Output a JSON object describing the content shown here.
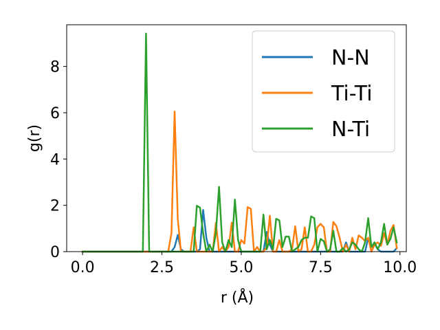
{
  "chart_data": {
    "type": "line",
    "xlabel": "r (Å)",
    "ylabel": "g(r)",
    "xlim": [
      -0.5,
      10.2
    ],
    "ylim": [
      0,
      9.8
    ],
    "xticks": [
      "0.0",
      "2.5",
      "5.0",
      "7.5",
      "10.0"
    ],
    "xtick_values": [
      0,
      2.5,
      5,
      7.5,
      10
    ],
    "yticks": [
      "0",
      "2",
      "4",
      "6",
      "8"
    ],
    "ytick_values": [
      0,
      2,
      4,
      6,
      8
    ],
    "grid": false,
    "legend": "top-right",
    "series": [
      {
        "name": "N-N",
        "color": "#1f77b4",
        "x": [
          0,
          2.8,
          2.9,
          3.0,
          3.1,
          3.2,
          3.6,
          3.7,
          3.8,
          3.9,
          4.0,
          4.5,
          5.7,
          5.8,
          5.9,
          6.0,
          7.9,
          8.0,
          8.2,
          8.3,
          8.4,
          8.9,
          9.0,
          9.1,
          9.2,
          9.3,
          9.4,
          9.8,
          9.9
        ],
        "y": [
          0,
          0,
          0.2,
          0.72,
          0.1,
          0,
          0,
          0.1,
          1.8,
          0.6,
          0,
          0,
          0,
          0.85,
          0.3,
          0,
          0,
          0,
          0,
          0.4,
          0,
          0,
          0.6,
          0.2,
          0.35,
          0.1,
          0,
          0,
          0.15
        ]
      },
      {
        "name": "Ti-Ti",
        "color": "#ff7f0e",
        "x": [
          0,
          2.7,
          2.8,
          2.9,
          3.0,
          3.1,
          3.2,
          3.3,
          3.4,
          3.5,
          3.6,
          4.1,
          4.2,
          4.3,
          4.4,
          4.5,
          4.6,
          4.7,
          4.8,
          4.9,
          5.0,
          5.1,
          5.2,
          5.3,
          5.4,
          5.5,
          5.6,
          5.7,
          5.8,
          5.9,
          6.0,
          6.1,
          6.2,
          6.3,
          6.4,
          6.5,
          6.6,
          6.7,
          6.8,
          6.9,
          7.0,
          7.1,
          7.2,
          7.3,
          7.4,
          7.5,
          7.6,
          7.7,
          7.8,
          7.9,
          8.0,
          8.1,
          8.2,
          8.3,
          8.4,
          8.5,
          8.6,
          8.7,
          8.8,
          8.9,
          9.0,
          9.1,
          9.2,
          9.3,
          9.4,
          9.5,
          9.6,
          9.7,
          9.8,
          9.9
        ],
        "y": [
          0,
          0,
          0.8,
          6.05,
          1.4,
          0,
          0,
          0,
          0,
          1.05,
          0,
          0,
          1.25,
          0,
          0.2,
          0,
          0.2,
          1.25,
          0,
          0,
          0.5,
          0.35,
          1.92,
          1.85,
          0,
          0.2,
          0,
          0,
          0.2,
          1.55,
          0,
          0,
          0.5,
          0,
          0,
          0,
          0.1,
          1.1,
          0,
          0.1,
          1.05,
          0,
          0,
          0.3,
          1.05,
          1.2,
          1.05,
          0,
          0,
          1.28,
          1.1,
          0.6,
          0,
          0.3,
          0,
          0.6,
          0.1,
          0.7,
          0.6,
          0.45,
          0.6,
          0,
          0.3,
          0.4,
          0.25,
          0.8,
          0.3,
          0.9,
          1.15,
          0.15
        ]
      },
      {
        "name": "N-Ti",
        "color": "#2ca02c",
        "x": [
          0,
          1.9,
          2.0,
          2.1,
          3.4,
          3.5,
          3.6,
          3.7,
          3.8,
          3.9,
          4.0,
          4.1,
          4.2,
          4.3,
          4.4,
          4.5,
          4.6,
          4.7,
          4.8,
          4.9,
          5.0,
          5.1,
          5.2,
          5.5,
          5.6,
          5.7,
          5.8,
          5.9,
          6.0,
          6.1,
          6.2,
          6.3,
          6.4,
          6.5,
          6.6,
          6.7,
          6.8,
          6.9,
          7.0,
          7.1,
          7.2,
          7.3,
          7.4,
          7.5,
          7.6,
          7.7,
          7.8,
          7.9,
          8.0,
          8.1,
          8.2,
          8.3,
          8.4,
          8.5,
          8.6,
          8.7,
          8.8,
          8.9,
          9.0,
          9.1,
          9.2,
          9.3,
          9.4,
          9.5,
          9.6,
          9.7,
          9.8,
          9.9
        ],
        "y": [
          0,
          0,
          9.42,
          0,
          0,
          0,
          1.98,
          1.9,
          0.8,
          0,
          0.3,
          0,
          0.8,
          2.8,
          0.4,
          0,
          0.5,
          0.2,
          2.25,
          0.5,
          0,
          0,
          0,
          0,
          0,
          1.6,
          0.1,
          0.5,
          0.1,
          1.42,
          1.35,
          0.2,
          0.65,
          0.65,
          0,
          0.1,
          0.2,
          0.5,
          0.6,
          0.6,
          1.52,
          1.45,
          0,
          0.55,
          0.45,
          0,
          0.1,
          0.9,
          0,
          0,
          0.15,
          0,
          0.1,
          0.4,
          0.3,
          0.1,
          0,
          0.4,
          1.45,
          0.2,
          0.4,
          0.1,
          0.4,
          1.2,
          0.3,
          0.55,
          1.05,
          0.4
        ]
      }
    ]
  }
}
